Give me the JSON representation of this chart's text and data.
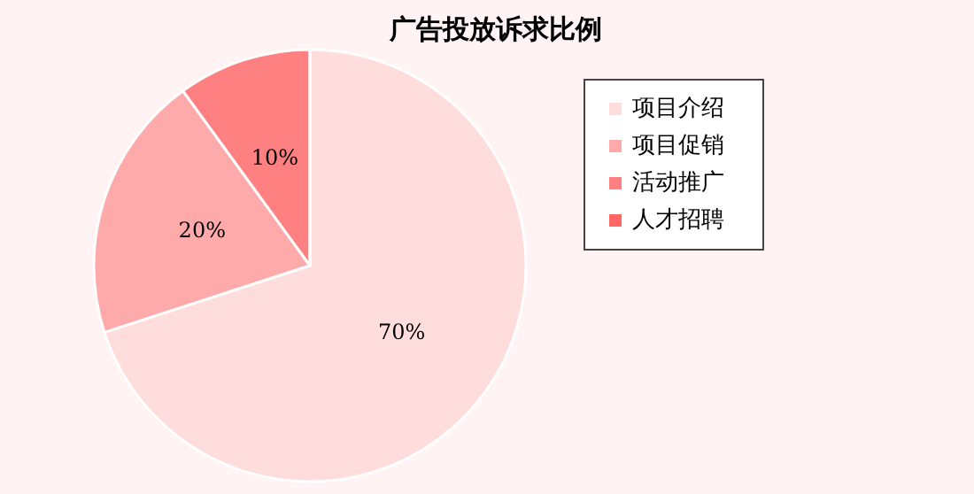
{
  "chart_data": {
    "type": "pie",
    "title": "广告投放诉求比例",
    "categories": [
      "项目介绍",
      "项目促销",
      "活动推广",
      "人才招聘"
    ],
    "values": [
      70,
      20,
      10,
      0
    ],
    "colors": [
      "#ffdddd",
      "#ffaaaa",
      "#ff8080",
      "#ff6666"
    ],
    "value_labels": [
      "70%",
      "20%",
      "10%",
      null
    ],
    "legend": "right"
  }
}
